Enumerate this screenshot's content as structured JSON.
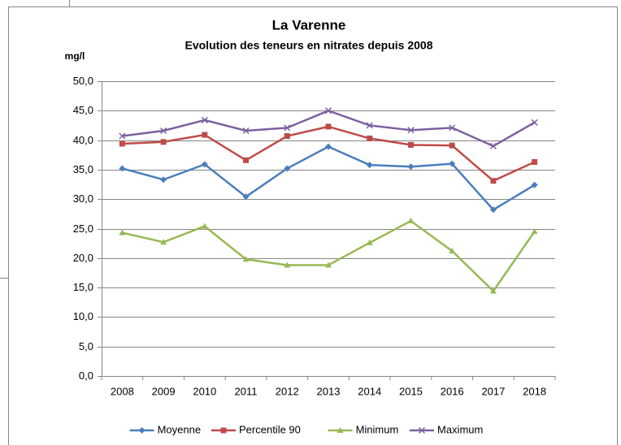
{
  "chart_data": {
    "type": "line",
    "title": "La Varenne",
    "subtitle": "Evolution des teneurs en nitrates depuis 2008",
    "y_label": "mg/l",
    "categories": [
      "2008",
      "2009",
      "2010",
      "2011",
      "2012",
      "2013",
      "2014",
      "2015",
      "2016",
      "2017",
      "2018"
    ],
    "series": [
      {
        "name": "Moyenne",
        "color": "#4a7ebb",
        "marker": "diamond",
        "values": [
          35.2,
          33.3,
          35.9,
          30.4,
          35.2,
          38.9,
          35.8,
          35.5,
          36.0,
          28.2,
          32.4
        ]
      },
      {
        "name": "Percentile 90",
        "color": "#be4b48",
        "marker": "square",
        "values": [
          39.4,
          39.7,
          40.9,
          36.6,
          40.7,
          42.3,
          40.3,
          39.2,
          39.1,
          33.1,
          36.3
        ]
      },
      {
        "name": "Minimum",
        "color": "#98b954",
        "marker": "triangle",
        "values": [
          24.3,
          22.7,
          25.4,
          19.8,
          18.8,
          18.8,
          22.6,
          26.3,
          21.2,
          14.4,
          24.5
        ]
      },
      {
        "name": "Maximum",
        "color": "#7d60a0",
        "marker": "x",
        "values": [
          40.7,
          41.6,
          43.4,
          41.6,
          42.1,
          45.0,
          42.5,
          41.7,
          42.1,
          39.0,
          43.0
        ]
      }
    ],
    "ylim": [
      0,
      50
    ],
    "yticks": [
      {
        "value": 0,
        "label": "0,0"
      },
      {
        "value": 5,
        "label": "5,0"
      },
      {
        "value": 10,
        "label": "10,0"
      },
      {
        "value": 15,
        "label": "15,0"
      },
      {
        "value": 20,
        "label": "20,0"
      },
      {
        "value": 25,
        "label": "25,0"
      },
      {
        "value": 30,
        "label": "30,0"
      },
      {
        "value": 35,
        "label": "35,0"
      },
      {
        "value": 40,
        "label": "40,0"
      },
      {
        "value": 45,
        "label": "45,0"
      },
      {
        "value": 50,
        "label": "50,0"
      }
    ],
    "grid": true,
    "legend": "bottom"
  }
}
